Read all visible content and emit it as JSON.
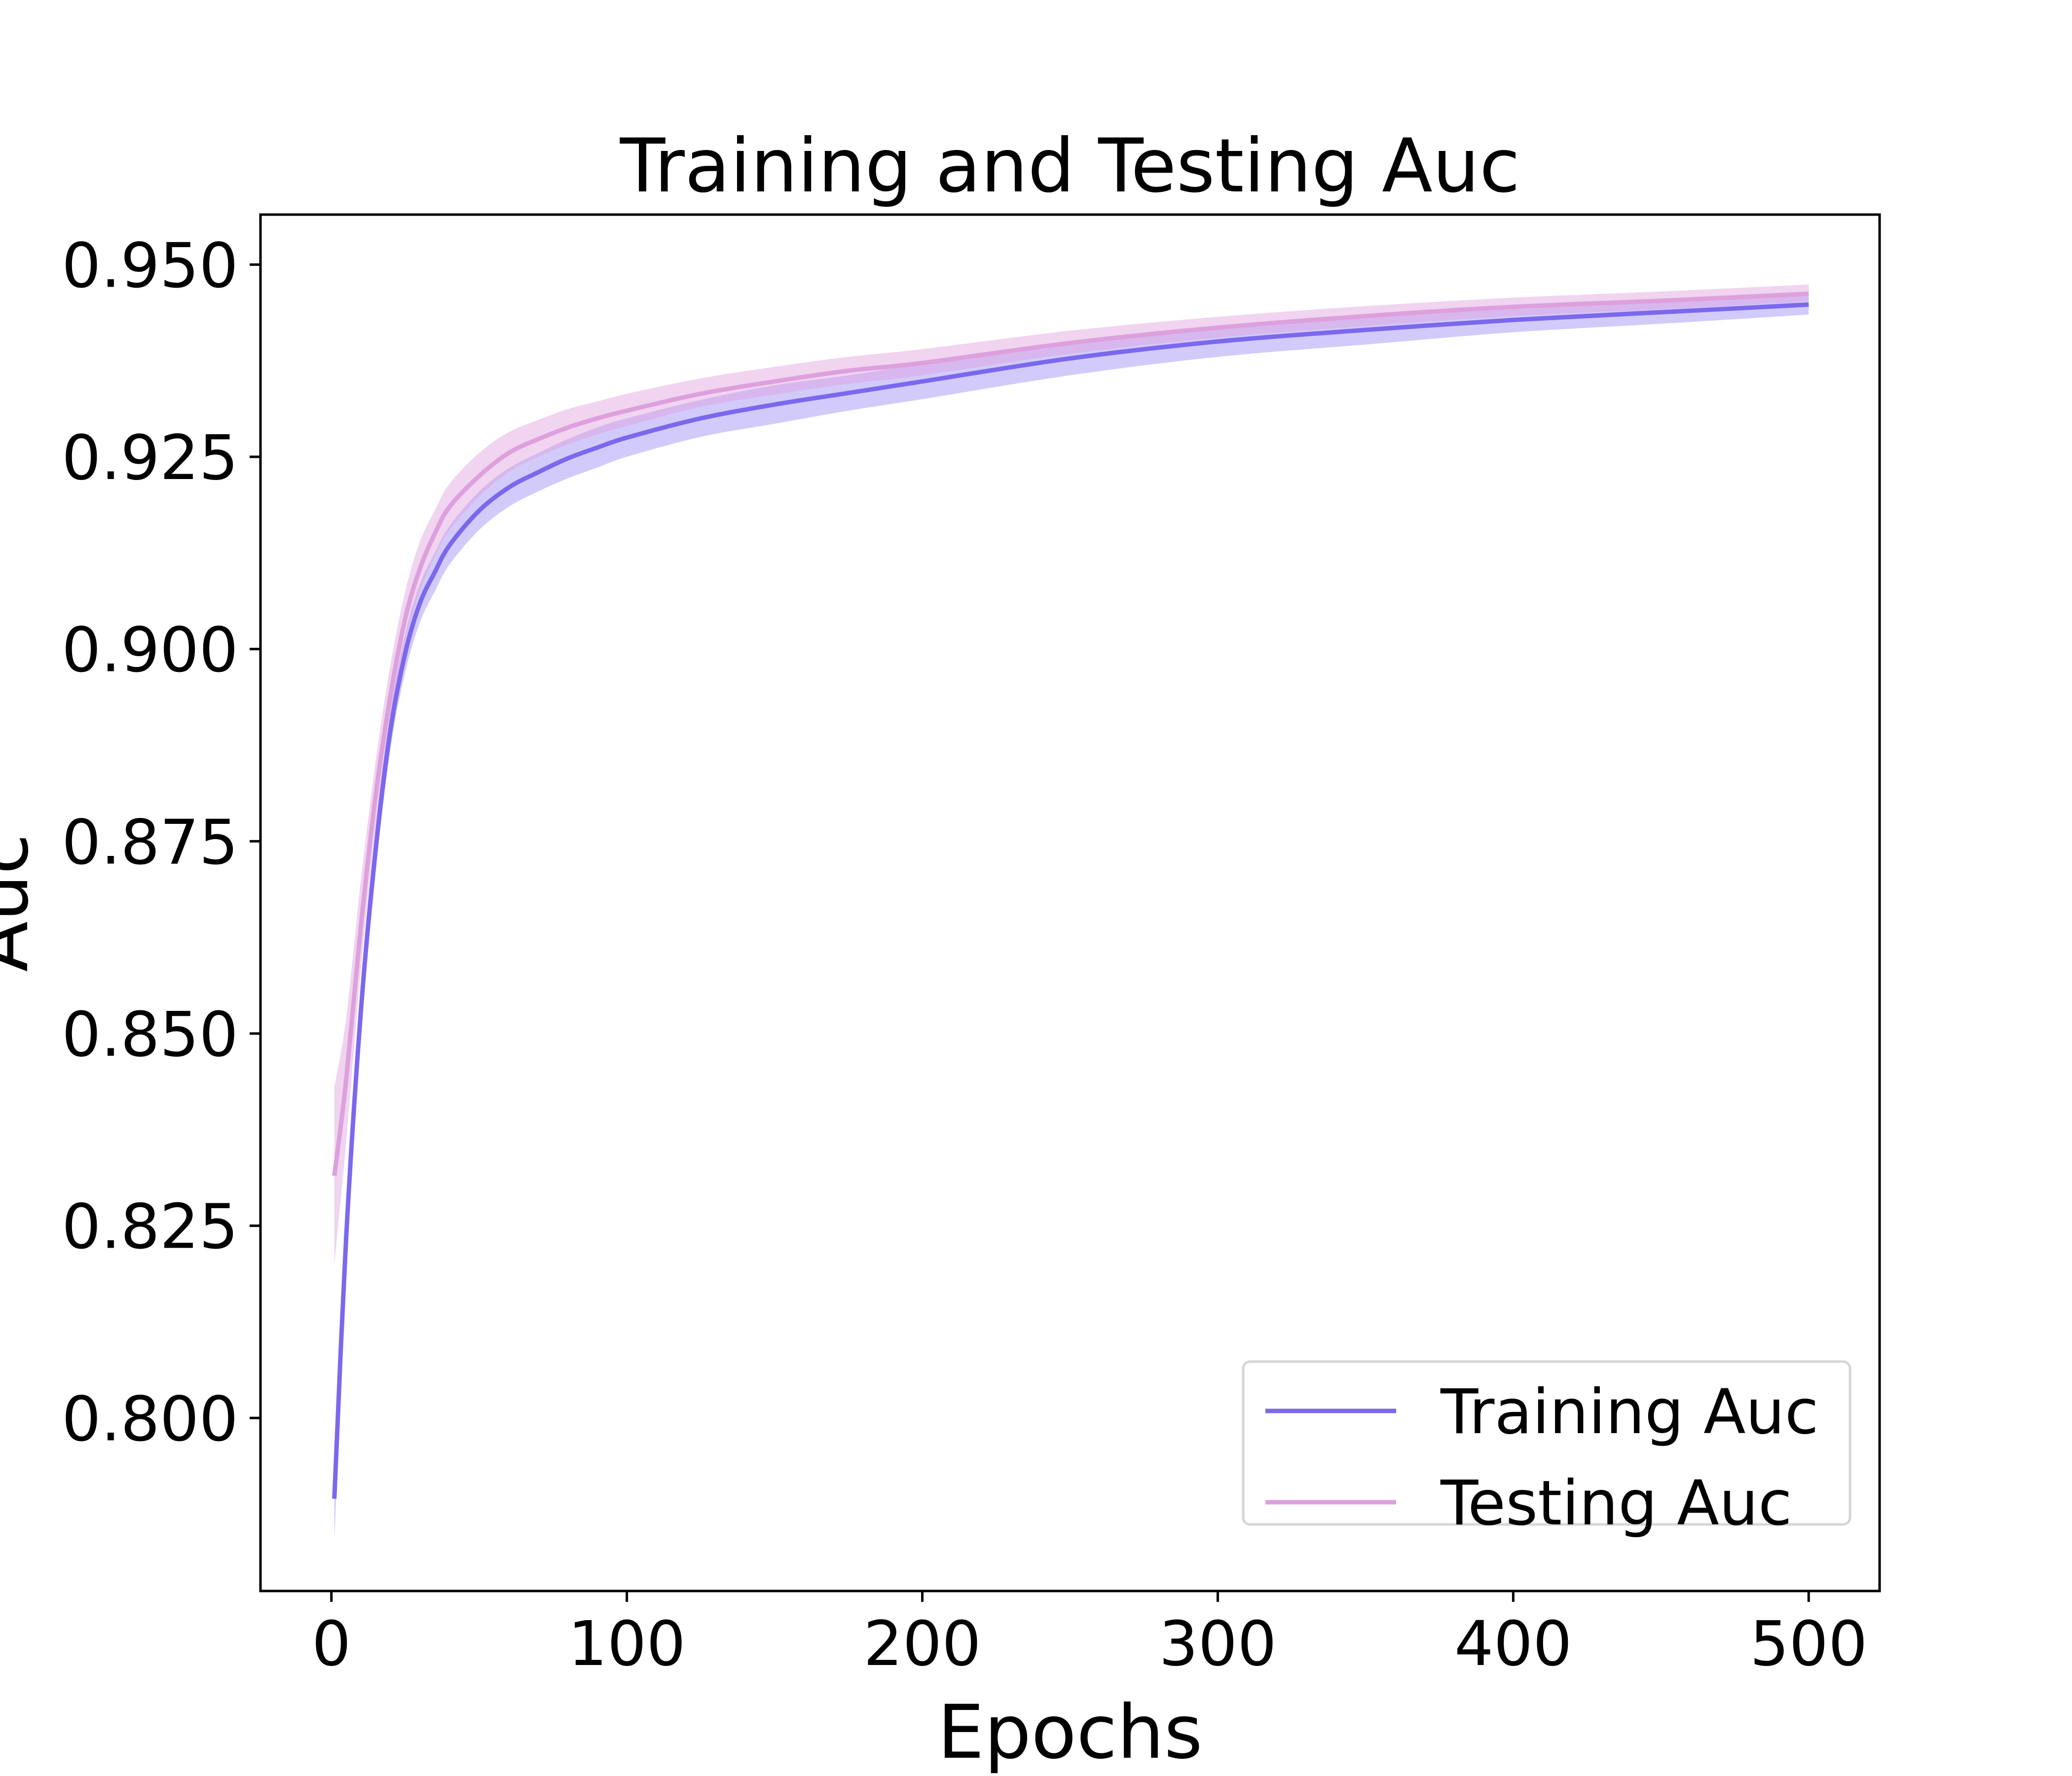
{
  "chart_data": {
    "type": "line",
    "title": "Training and Testing Auc",
    "xlabel": "Epochs",
    "ylabel": "Auc",
    "xlim": [
      -24,
      524
    ],
    "ylim": [
      0.7775,
      0.9565
    ],
    "xticks": [
      0,
      100,
      200,
      300,
      400,
      500
    ],
    "xtick_labels": [
      "0",
      "100",
      "200",
      "300",
      "400",
      "500"
    ],
    "yticks": [
      0.8,
      0.825,
      0.85,
      0.875,
      0.9,
      0.925,
      0.95
    ],
    "ytick_labels": [
      "0.800",
      "0.825",
      "0.850",
      "0.875",
      "0.900",
      "0.925",
      "0.950"
    ],
    "grid": false,
    "legend_position": "lower-right",
    "band_opacity": 0.45,
    "series": [
      {
        "name": "Training Auc",
        "color": "#7b68ee",
        "band_color": "#9b8cf2",
        "x": [
          1,
          5,
          10,
          15,
          20,
          25,
          30,
          35,
          40,
          50,
          60,
          70,
          80,
          90,
          100,
          125,
          150,
          175,
          200,
          250,
          300,
          350,
          400,
          450,
          500
        ],
        "y": [
          0.7895,
          0.8235,
          0.853,
          0.874,
          0.8895,
          0.8995,
          0.906,
          0.91,
          0.9135,
          0.918,
          0.921,
          0.923,
          0.9248,
          0.9262,
          0.9275,
          0.93,
          0.9318,
          0.9333,
          0.9348,
          0.9378,
          0.94,
          0.9415,
          0.9428,
          0.9438,
          0.9448
        ],
        "y_low": [
          0.784,
          0.819,
          0.8495,
          0.871,
          0.887,
          0.897,
          0.9035,
          0.9075,
          0.911,
          0.9155,
          0.9185,
          0.9205,
          0.9222,
          0.9236,
          0.925,
          0.9276,
          0.9293,
          0.931,
          0.9325,
          0.9356,
          0.938,
          0.9396,
          0.9412,
          0.9423,
          0.9435
        ],
        "y_high": [
          0.7945,
          0.8275,
          0.8565,
          0.877,
          0.892,
          0.902,
          0.9085,
          0.9125,
          0.916,
          0.9205,
          0.9235,
          0.9255,
          0.9273,
          0.9288,
          0.93,
          0.9324,
          0.9343,
          0.9356,
          0.9371,
          0.94,
          0.942,
          0.9434,
          0.9444,
          0.9453,
          0.9461
        ]
      },
      {
        "name": "Testing Auc",
        "color": "#dda0dd",
        "band_color": "#dda0dd",
        "x": [
          1,
          5,
          10,
          15,
          20,
          25,
          30,
          35,
          40,
          50,
          60,
          70,
          80,
          90,
          100,
          125,
          150,
          175,
          200,
          250,
          300,
          350,
          400,
          450,
          500
        ],
        "y": [
          0.8315,
          0.844,
          0.864,
          0.881,
          0.894,
          0.904,
          0.9105,
          0.915,
          0.9185,
          0.9225,
          0.9255,
          0.9273,
          0.9288,
          0.93,
          0.931,
          0.9332,
          0.9348,
          0.9362,
          0.9372,
          0.9398,
          0.9418,
          0.9433,
          0.9445,
          0.9453,
          0.9462
        ],
        "y_low": [
          0.82,
          0.836,
          0.8585,
          0.877,
          0.8905,
          0.901,
          0.9075,
          0.912,
          0.9155,
          0.9198,
          0.923,
          0.925,
          0.9266,
          0.9279,
          0.929,
          0.9315,
          0.9331,
          0.9345,
          0.9356,
          0.9384,
          0.9405,
          0.942,
          0.9433,
          0.9442,
          0.9452
        ],
        "y_high": [
          0.843,
          0.852,
          0.87,
          0.8855,
          0.898,
          0.9075,
          0.914,
          0.918,
          0.9215,
          0.9255,
          0.9282,
          0.9298,
          0.9312,
          0.9322,
          0.9332,
          0.9352,
          0.9367,
          0.938,
          0.939,
          0.9414,
          0.9432,
          0.9446,
          0.9457,
          0.9465,
          0.9474
        ]
      }
    ]
  }
}
